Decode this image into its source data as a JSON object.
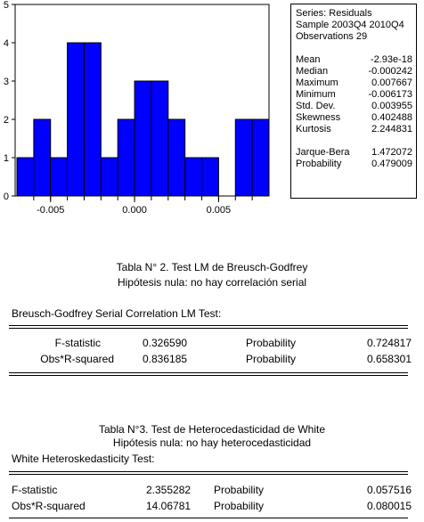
{
  "chart_data": {
    "type": "bar",
    "title": "",
    "xlabel": "",
    "ylabel": "",
    "bin_edges": [
      -0.007,
      -0.006,
      -0.005,
      -0.004,
      -0.003,
      -0.002,
      -0.001,
      0.0,
      0.001,
      0.002,
      0.003,
      0.004,
      0.005,
      0.006,
      0.007,
      0.008
    ],
    "values": [
      1,
      2,
      1,
      4,
      4,
      1,
      2,
      3,
      3,
      2,
      1,
      1,
      0,
      2,
      2
    ],
    "ylim": [
      0,
      5
    ],
    "xlim": [
      -0.007,
      0.008
    ],
    "y_ticks": [
      "0",
      "1",
      "2",
      "3",
      "4",
      "5"
    ],
    "x_ticks": [
      {
        "value": -0.005,
        "label": "-0.005"
      },
      {
        "value": 0.0,
        "label": "0.000"
      },
      {
        "value": 0.005,
        "label": "0.005"
      }
    ],
    "bar_color": "#0000ff"
  },
  "stats_box": {
    "series": "Series: Residuals",
    "sample": "Sample 2003Q4 2010Q4",
    "observations": "Observations 29",
    "rows1": [
      {
        "label": "Mean",
        "value": "-2.93e-18"
      },
      {
        "label": "Median",
        "value": "-0.000242"
      },
      {
        "label": "Maximum",
        "value": "0.007667"
      },
      {
        "label": "Minimum",
        "value": "-0.006173"
      },
      {
        "label": "Std. Dev.",
        "value": "0.003955"
      },
      {
        "label": "Skewness",
        "value": "0.402488"
      },
      {
        "label": "Kurtosis",
        "value": "2.244831"
      }
    ],
    "rows2": [
      {
        "label": "Jarque-Bera",
        "value": "1.472072"
      },
      {
        "label": "Probability",
        "value": "0.479009"
      }
    ]
  },
  "table2": {
    "caption_line1": "Tabla N° 2. Test LM de Breusch-Godfrey",
    "caption_line2": "Hipótesis nula: no hay correlación serial",
    "title": "Breusch-Godfrey Serial Correlation LM Test:",
    "rows": [
      {
        "label": "F-statistic",
        "value": "0.326590",
        "prob_label": "Probability",
        "prob": "0.724817"
      },
      {
        "label": "Obs*R-squared",
        "value": "0.836185",
        "prob_label": "Probability",
        "prob": "0.658301"
      }
    ]
  },
  "table3": {
    "caption_line1": "Tabla N°3. Test de Heterocedasticidad de White",
    "caption_line2": "Hipótesis nula: no hay heterocedasticidad",
    "title": "White Heteroskedasticity Test:",
    "rows": [
      {
        "label": "F-statistic",
        "value": "2.355282",
        "prob_label": "Probability",
        "prob": "0.057516"
      },
      {
        "label": "Obs*R-squared",
        "value": "14.06781",
        "prob_label": "Probability",
        "prob": "0.080015"
      }
    ]
  }
}
